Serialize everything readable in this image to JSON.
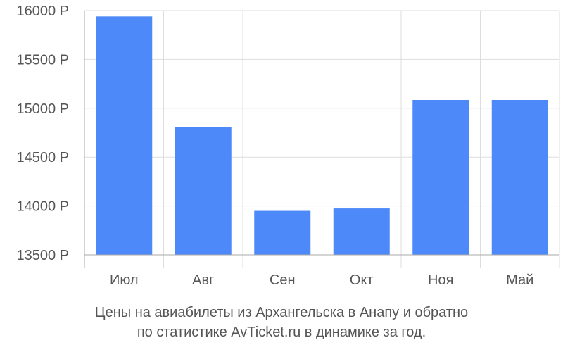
{
  "chart_data": {
    "type": "bar",
    "categories": [
      "Июл",
      "Авг",
      "Сен",
      "Окт",
      "Ноя",
      "Май"
    ],
    "values": [
      15940,
      14810,
      13950,
      13975,
      15085,
      15085
    ],
    "y_ticks": [
      13500,
      14000,
      14500,
      15000,
      15500,
      16000
    ],
    "y_tick_labels": [
      "13500 Р",
      "14000 Р",
      "14500 Р",
      "15000 Р",
      "15500 Р",
      "16000 Р"
    ],
    "ylim": [
      13500,
      16000
    ],
    "grid": true,
    "bar_color": "#4d89f9",
    "grid_color": "#dddddd",
    "axis_color": "#aaaaaa",
    "title_line1": "Цены на авиабилеты из Архангельска в Анапу и обратно",
    "title_line2": "по статистике AvTicket.ru в динамике за год."
  }
}
